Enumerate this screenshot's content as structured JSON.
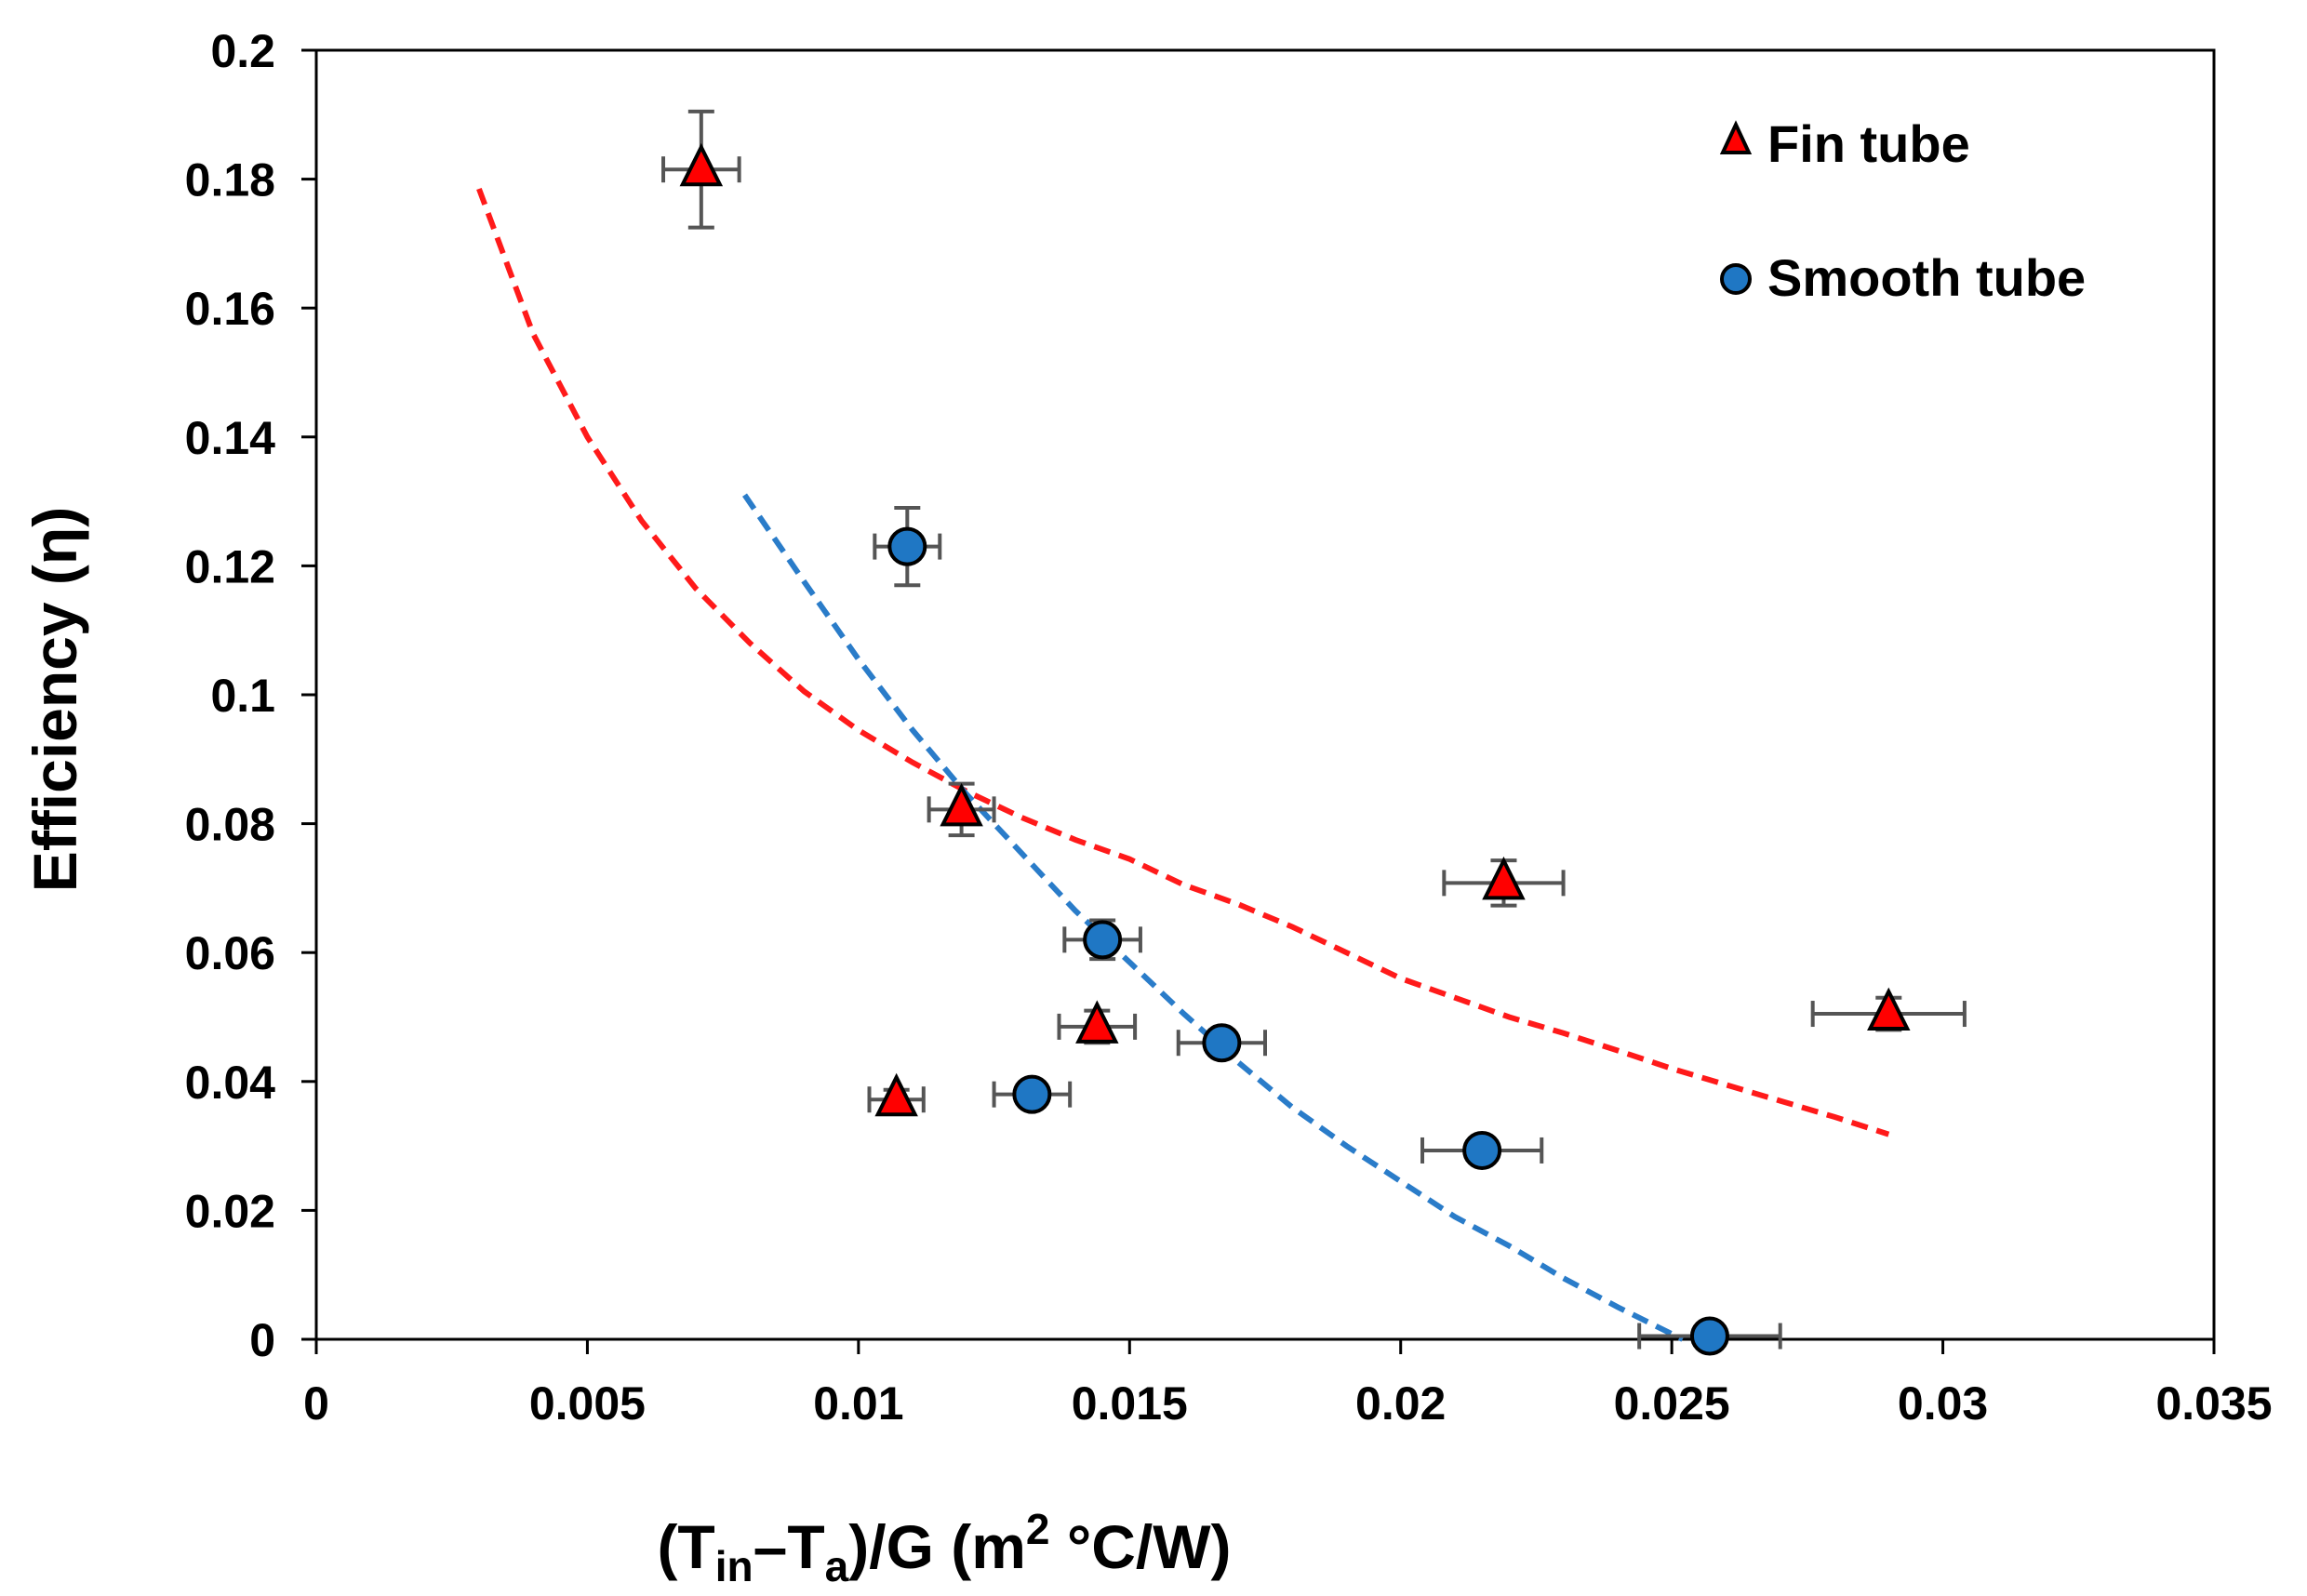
{
  "chart_data": {
    "type": "scatter",
    "title": "",
    "xlabel": {
      "main1": "(T",
      "sub1": "in",
      "main2": "–T",
      "sub2": "a",
      "main3": ")/G (m",
      "sup": "2",
      "main4": " °C/W)"
    },
    "ylabel": "Efficiency (η)",
    "xlim": [
      0,
      0.035
    ],
    "ylim": [
      0,
      0.2
    ],
    "x_ticks": [
      0,
      0.005,
      0.01,
      0.015,
      0.02,
      0.025,
      0.03,
      0.035
    ],
    "x_tick_labels": [
      "0",
      "0.005",
      "0.01",
      "0.015",
      "0.02",
      "0.025",
      "0.03",
      "0.035"
    ],
    "y_ticks": [
      0,
      0.02,
      0.04,
      0.06,
      0.08,
      0.1,
      0.12,
      0.14,
      0.16,
      0.18,
      0.2
    ],
    "y_tick_labels": [
      "0",
      "0.02",
      "0.04",
      "0.06",
      "0.08",
      "0.1",
      "0.12",
      "0.14",
      "0.16",
      "0.18",
      "0.2"
    ],
    "grid": false,
    "legend_position": "top-right",
    "series": [
      {
        "name": "Fin tube",
        "marker": "triangle",
        "color": "#ff0000",
        "points": [
          {
            "x": 0.0071,
            "y": 0.1815,
            "xerr": 0.0007,
            "yerr": 0.009
          },
          {
            "x": 0.0119,
            "y": 0.0822,
            "xerr": 0.0006,
            "yerr": 0.004
          },
          {
            "x": 0.0144,
            "y": 0.0485,
            "xerr": 0.0007,
            "yerr": 0.0025
          },
          {
            "x": 0.0107,
            "y": 0.0372,
            "xerr": 0.0005,
            "yerr": 0.0015
          },
          {
            "x": 0.0219,
            "y": 0.0708,
            "xerr": 0.0011,
            "yerr": 0.0035
          },
          {
            "x": 0.029,
            "y": 0.0505,
            "xerr": 0.0014,
            "yerr": 0.0025
          }
        ]
      },
      {
        "name": "Smooth tube",
        "marker": "circle",
        "color": "#1f77c4",
        "points": [
          {
            "x": 0.0109,
            "y": 0.123,
            "xerr": 0.0006,
            "yerr": 0.006
          },
          {
            "x": 0.0145,
            "y": 0.062,
            "xerr": 0.0007,
            "yerr": 0.003
          },
          {
            "x": 0.0132,
            "y": 0.038,
            "xerr": 0.0007,
            "yerr": 0.0015
          },
          {
            "x": 0.0167,
            "y": 0.046,
            "xerr": 0.0008,
            "yerr": 0.002
          },
          {
            "x": 0.0215,
            "y": 0.0293,
            "xerr": 0.0011,
            "yerr": 0.0015
          },
          {
            "x": 0.0257,
            "y": 0.0005,
            "xerr": 0.0013,
            "yerr": 0.0005
          }
        ]
      }
    ],
    "trendlines": [
      {
        "name": "Fin tube trend",
        "color": "#ff1a1a",
        "style": "dashed",
        "points": [
          [
            0.003,
            0.1785
          ],
          [
            0.004,
            0.156
          ],
          [
            0.005,
            0.14
          ],
          [
            0.006,
            0.127
          ],
          [
            0.007,
            0.1165
          ],
          [
            0.008,
            0.108
          ],
          [
            0.009,
            0.1005
          ],
          [
            0.01,
            0.0945
          ],
          [
            0.011,
            0.0895
          ],
          [
            0.012,
            0.085
          ],
          [
            0.013,
            0.081
          ],
          [
            0.014,
            0.0775
          ],
          [
            0.015,
            0.0745
          ],
          [
            0.016,
            0.0705
          ],
          [
            0.017,
            0.0675
          ],
          [
            0.018,
            0.064
          ],
          [
            0.019,
            0.06
          ],
          [
            0.02,
            0.056
          ],
          [
            0.021,
            0.053
          ],
          [
            0.022,
            0.05
          ],
          [
            0.023,
            0.0475
          ],
          [
            0.024,
            0.0448
          ],
          [
            0.025,
            0.042
          ],
          [
            0.026,
            0.0395
          ],
          [
            0.027,
            0.037
          ],
          [
            0.028,
            0.0345
          ],
          [
            0.029,
            0.0318
          ]
        ]
      },
      {
        "name": "Smooth tube trend",
        "color": "#2a7cc9",
        "style": "dashed",
        "points": [
          [
            0.0079,
            0.131
          ],
          [
            0.009,
            0.1175
          ],
          [
            0.01,
            0.1055
          ],
          [
            0.011,
            0.0945
          ],
          [
            0.012,
            0.0845
          ],
          [
            0.013,
            0.0755
          ],
          [
            0.014,
            0.0665
          ],
          [
            0.015,
            0.0585
          ],
          [
            0.016,
            0.0505
          ],
          [
            0.017,
            0.043
          ],
          [
            0.018,
            0.036
          ],
          [
            0.019,
            0.03
          ],
          [
            0.02,
            0.0245
          ],
          [
            0.021,
            0.019
          ],
          [
            0.022,
            0.0145
          ],
          [
            0.023,
            0.0095
          ],
          [
            0.024,
            0.005
          ],
          [
            0.0252,
            0.0
          ]
        ]
      }
    ]
  }
}
